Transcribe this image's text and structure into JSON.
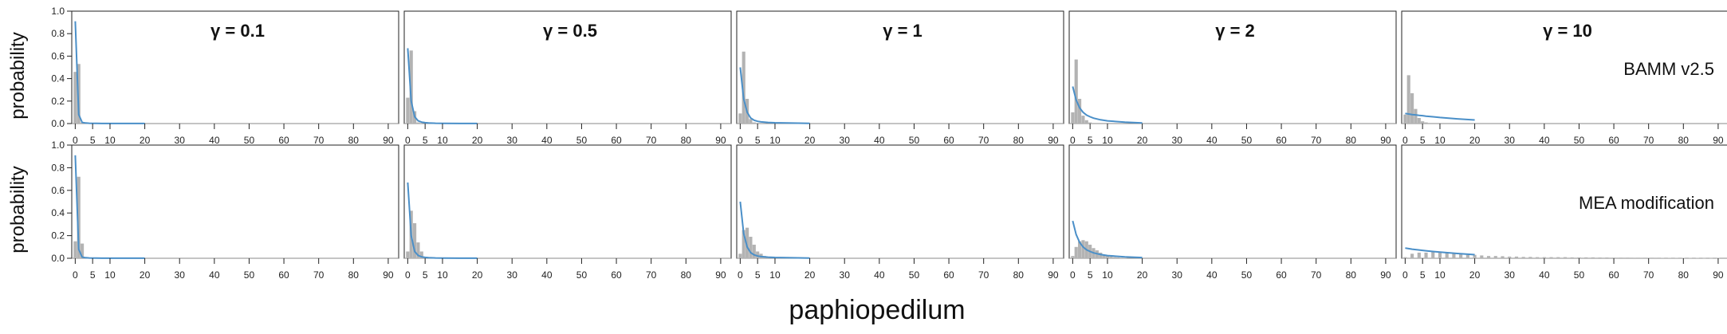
{
  "figure": {
    "xlabel": "paphiopedilum",
    "ylabel": "probability",
    "row_labels": [
      "BAMM v2.5",
      "MEA modification"
    ],
    "col_titles": [
      "γ = 0.1",
      "γ = 0.5",
      "γ = 1",
      "γ = 2",
      "γ = 10"
    ],
    "bar_color": "#b3b3b3",
    "curve_color": "#4a8fc8"
  },
  "chart_data": {
    "type": "bar",
    "title": "",
    "xlabel": "paphiopedilum",
    "ylabel": "probability",
    "xlim": [
      -1,
      93
    ],
    "ylim": [
      0,
      1.0
    ],
    "xticks": [
      0,
      5,
      10,
      20,
      30,
      40,
      50,
      60,
      70,
      80,
      90
    ],
    "yticks": [
      0.0,
      0.2,
      0.4,
      0.6,
      0.8,
      1.0
    ],
    "grid": false,
    "rows": [
      "BAMM v2.5",
      "MEA modification"
    ],
    "cols": [
      "γ = 0.1",
      "γ = 0.5",
      "γ = 1",
      "γ = 2",
      "γ = 10"
    ],
    "panels": [
      {
        "row": 0,
        "col": 0,
        "gamma": 0.1,
        "hist": {
          "x": [
            0,
            1,
            2
          ],
          "y": [
            0.46,
            0.53,
            0.01
          ]
        },
        "curve": {
          "x": [
            0,
            1,
            2,
            3,
            4,
            5,
            6,
            8,
            10,
            15,
            20
          ],
          "y": [
            0.91,
            0.08,
            0.01,
            0.005,
            0.003,
            0.002,
            0.002,
            0.001,
            0.001,
            0.001,
            0.001
          ]
        }
      },
      {
        "row": 0,
        "col": 1,
        "gamma": 0.5,
        "hist": {
          "x": [
            0,
            1,
            2,
            3
          ],
          "y": [
            0.23,
            0.65,
            0.11,
            0.01
          ]
        },
        "curve": {
          "x": [
            0,
            1,
            2,
            3,
            4,
            5,
            6,
            8,
            10,
            15,
            20
          ],
          "y": [
            0.67,
            0.2,
            0.06,
            0.025,
            0.013,
            0.008,
            0.005,
            0.003,
            0.002,
            0.001,
            0.001
          ]
        }
      },
      {
        "row": 0,
        "col": 2,
        "gamma": 1,
        "hist": {
          "x": [
            0,
            1,
            2,
            3,
            4
          ],
          "y": [
            0.09,
            0.64,
            0.22,
            0.04,
            0.01
          ]
        },
        "curve": {
          "x": [
            0,
            1,
            2,
            3,
            4,
            5,
            6,
            8,
            10,
            15,
            20
          ],
          "y": [
            0.5,
            0.22,
            0.1,
            0.05,
            0.03,
            0.02,
            0.015,
            0.01,
            0.007,
            0.004,
            0.002
          ]
        }
      },
      {
        "row": 0,
        "col": 3,
        "gamma": 2,
        "hist": {
          "x": [
            0,
            1,
            2,
            3,
            4,
            5
          ],
          "y": [
            0.1,
            0.57,
            0.22,
            0.07,
            0.03,
            0.01
          ]
        },
        "curve": {
          "x": [
            0,
            1,
            2,
            3,
            4,
            5,
            6,
            8,
            10,
            15,
            20
          ],
          "y": [
            0.33,
            0.21,
            0.14,
            0.1,
            0.075,
            0.06,
            0.048,
            0.033,
            0.024,
            0.012,
            0.006
          ]
        }
      },
      {
        "row": 0,
        "col": 4,
        "gamma": 10,
        "hist": {
          "x": [
            0,
            1,
            2,
            3,
            4,
            5,
            6
          ],
          "y": [
            0.08,
            0.43,
            0.27,
            0.13,
            0.05,
            0.02,
            0.01
          ]
        },
        "curve": {
          "x": [
            0,
            1,
            2,
            3,
            4,
            5,
            6,
            8,
            10,
            15,
            20
          ],
          "y": [
            0.09,
            0.085,
            0.08,
            0.077,
            0.073,
            0.07,
            0.066,
            0.06,
            0.054,
            0.042,
            0.032
          ]
        }
      },
      {
        "row": 1,
        "col": 0,
        "gamma": 0.1,
        "hist": {
          "x": [
            0,
            1,
            2
          ],
          "y": [
            0.15,
            0.72,
            0.13
          ]
        },
        "curve": {
          "x": [
            0,
            1,
            2,
            3,
            4,
            5,
            6,
            8,
            10,
            15,
            20
          ],
          "y": [
            0.91,
            0.08,
            0.01,
            0.005,
            0.003,
            0.002,
            0.002,
            0.001,
            0.001,
            0.001,
            0.001
          ]
        }
      },
      {
        "row": 1,
        "col": 1,
        "gamma": 0.5,
        "hist": {
          "x": [
            0,
            1,
            2,
            3,
            4,
            5
          ],
          "y": [
            0.06,
            0.42,
            0.31,
            0.14,
            0.06,
            0.01
          ]
        },
        "curve": {
          "x": [
            0,
            1,
            2,
            3,
            4,
            5,
            6,
            8,
            10,
            15,
            20
          ],
          "y": [
            0.67,
            0.2,
            0.06,
            0.025,
            0.013,
            0.008,
            0.005,
            0.003,
            0.002,
            0.001,
            0.001
          ]
        }
      },
      {
        "row": 1,
        "col": 2,
        "gamma": 1,
        "hist": {
          "x": [
            0,
            1,
            2,
            3,
            4,
            5,
            6,
            7,
            8
          ],
          "y": [
            0.04,
            0.25,
            0.27,
            0.19,
            0.12,
            0.06,
            0.04,
            0.02,
            0.01
          ]
        },
        "curve": {
          "x": [
            0,
            1,
            2,
            3,
            4,
            5,
            6,
            8,
            10,
            15,
            20
          ],
          "y": [
            0.5,
            0.22,
            0.1,
            0.05,
            0.03,
            0.02,
            0.015,
            0.01,
            0.007,
            0.004,
            0.002
          ]
        }
      },
      {
        "row": 1,
        "col": 3,
        "gamma": 2,
        "hist": {
          "x": [
            0,
            1,
            2,
            3,
            4,
            5,
            6,
            7,
            8,
            9,
            10,
            11,
            12,
            13,
            14,
            15
          ],
          "y": [
            0.02,
            0.1,
            0.15,
            0.16,
            0.15,
            0.12,
            0.09,
            0.07,
            0.05,
            0.03,
            0.02,
            0.015,
            0.01,
            0.008,
            0.005,
            0.003
          ]
        },
        "curve": {
          "x": [
            0,
            1,
            2,
            3,
            4,
            5,
            6,
            8,
            10,
            15,
            20
          ],
          "y": [
            0.33,
            0.21,
            0.14,
            0.1,
            0.075,
            0.06,
            0.048,
            0.033,
            0.024,
            0.012,
            0.006
          ]
        }
      },
      {
        "row": 1,
        "col": 4,
        "gamma": 10,
        "hist": {
          "x": [
            0,
            2,
            4,
            6,
            8,
            10,
            12,
            14,
            16,
            18,
            20,
            22,
            24,
            26,
            28,
            30,
            32,
            34,
            36,
            38,
            40,
            42,
            44,
            46,
            48,
            50,
            52,
            54,
            56,
            58,
            60,
            62,
            64,
            66,
            68,
            70,
            72,
            74,
            76,
            78,
            80,
            82,
            84,
            86,
            88,
            90
          ],
          "y": [
            0.01,
            0.04,
            0.05,
            0.05,
            0.06,
            0.05,
            0.045,
            0.04,
            0.035,
            0.03,
            0.03,
            0.025,
            0.02,
            0.02,
            0.018,
            0.015,
            0.015,
            0.012,
            0.012,
            0.01,
            0.01,
            0.01,
            0.01,
            0.01,
            0.008,
            0.008,
            0.008,
            0.008,
            0.007,
            0.007,
            0.006,
            0.006,
            0.006,
            0.005,
            0.005,
            0.005,
            0.005,
            0.004,
            0.004,
            0.004,
            0.003,
            0.003,
            0.003,
            0.002,
            0.002,
            0.002
          ]
        },
        "curve": {
          "x": [
            0,
            1,
            2,
            3,
            4,
            5,
            6,
            8,
            10,
            15,
            20
          ],
          "y": [
            0.09,
            0.085,
            0.08,
            0.077,
            0.073,
            0.07,
            0.066,
            0.06,
            0.054,
            0.042,
            0.032
          ]
        }
      }
    ]
  }
}
